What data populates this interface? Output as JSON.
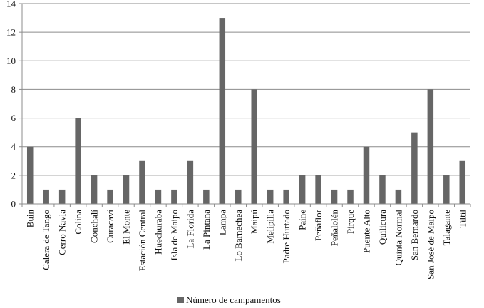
{
  "chart_data": {
    "type": "bar",
    "title": "",
    "xlabel": "",
    "ylabel": "",
    "ylim": [
      0,
      14
    ],
    "y_ticks": [
      0,
      2,
      4,
      6,
      8,
      10,
      12,
      14
    ],
    "grid": true,
    "legend_position": "bottom",
    "bar_color": "#666666",
    "categories": [
      "Buin",
      "Calera de Tango",
      "Cerro Navia",
      "Colina",
      "Conchalí",
      "Curacaví",
      "El Monte",
      "Estación Central",
      "Huechuraba",
      "Isla de Maipo",
      "La Florida",
      "La Pintana",
      "Lampa",
      "Lo Barnechea",
      "Maipú",
      "Melipilla",
      "Padre Hurtado",
      "Paine",
      "Peñaflor",
      "Peñalolén",
      "Pirque",
      "Puente Alto",
      "Quilicura",
      "Quinta Normal",
      "San Bernardo",
      "San José de Maipo",
      "Talagante",
      "Tiltil"
    ],
    "series": [
      {
        "name": "Número de campamentos",
        "values": [
          4,
          1,
          1,
          6,
          2,
          1,
          2,
          3,
          1,
          1,
          3,
          1,
          13,
          1,
          8,
          1,
          1,
          2,
          2,
          1,
          1,
          4,
          2,
          1,
          5,
          8,
          2,
          3
        ]
      }
    ]
  }
}
